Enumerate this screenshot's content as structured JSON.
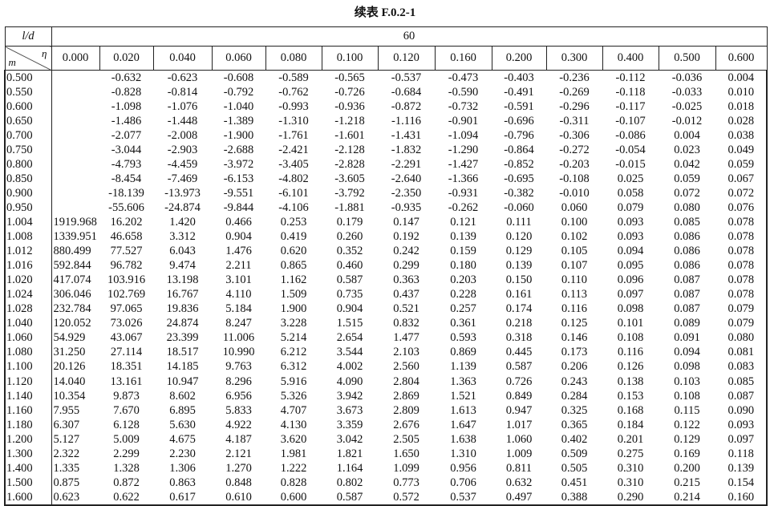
{
  "title": "续表 F.0.2-1",
  "header": {
    "ld_label": "l/d",
    "ld_value": "60",
    "eta_label": "η",
    "m_label": "m",
    "eta_values": [
      "0.000",
      "0.020",
      "0.040",
      "0.060",
      "0.080",
      "0.100",
      "0.120",
      "0.160",
      "0.200",
      "0.300",
      "0.400",
      "0.500",
      "0.600"
    ]
  },
  "rows": [
    {
      "m": "0.500",
      "v": [
        "",
        "-0.632",
        "-0.623",
        "-0.608",
        "-0.589",
        "-0.565",
        "-0.537",
        "-0.473",
        "-0.403",
        "-0.236",
        "-0.112",
        "-0.036",
        "0.004"
      ]
    },
    {
      "m": "0.550",
      "v": [
        "",
        "-0.828",
        "-0.814",
        "-0.792",
        "-0.762",
        "-0.726",
        "-0.684",
        "-0.590",
        "-0.491",
        "-0.269",
        "-0.118",
        "-0.033",
        "0.010"
      ]
    },
    {
      "m": "0.600",
      "v": [
        "",
        "-1.098",
        "-1.076",
        "-1.040",
        "-0.993",
        "-0.936",
        "-0.872",
        "-0.732",
        "-0.591",
        "-0.296",
        "-0.117",
        "-0.025",
        "0.018"
      ]
    },
    {
      "m": "0.650",
      "v": [
        "",
        "-1.486",
        "-1.448",
        "-1.389",
        "-1.310",
        "-1.218",
        "-1.116",
        "-0.901",
        "-0.696",
        "-0.311",
        "-0.107",
        "-0.012",
        "0.028"
      ]
    },
    {
      "m": "0.700",
      "v": [
        "",
        "-2.077",
        "-2.008",
        "-1.900",
        "-1.761",
        "-1.601",
        "-1.431",
        "-1.094",
        "-0.796",
        "-0.306",
        "-0.086",
        "0.004",
        "0.038"
      ]
    },
    {
      "m": "0.750",
      "v": [
        "",
        "-3.044",
        "-2.903",
        "-2.688",
        "-2.421",
        "-2.128",
        "-1.832",
        "-1.290",
        "-0.864",
        "-0.272",
        "-0.054",
        "0.023",
        "0.049"
      ]
    },
    {
      "m": "0.800",
      "v": [
        "",
        "-4.793",
        "-4.459",
        "-3.972",
        "-3.405",
        "-2.828",
        "-2.291",
        "-1.427",
        "-0.852",
        "-0.203",
        "-0.015",
        "0.042",
        "0.059"
      ]
    },
    {
      "m": "0.850",
      "v": [
        "",
        "-8.454",
        "-7.469",
        "-6.153",
        "-4.802",
        "-3.605",
        "-2.640",
        "-1.366",
        "-0.695",
        "-0.108",
        "0.025",
        "0.059",
        "0.067"
      ]
    },
    {
      "m": "0.900",
      "v": [
        "",
        "-18.139",
        "-13.973",
        "-9.551",
        "-6.101",
        "-3.792",
        "-2.350",
        "-0.931",
        "-0.382",
        "-0.010",
        "0.058",
        "0.072",
        "0.072"
      ]
    },
    {
      "m": "0.950",
      "v": [
        "",
        "-55.606",
        "-24.874",
        "-9.844",
        "-4.106",
        "-1.881",
        "-0.935",
        "-0.262",
        "-0.060",
        "0.060",
        "0.079",
        "0.080",
        "0.076"
      ]
    },
    {
      "m": "1.004",
      "v": [
        "1919.968",
        "16.202",
        "1.420",
        "0.466",
        "0.253",
        "0.179",
        "0.147",
        "0.121",
        "0.111",
        "0.100",
        "0.093",
        "0.085",
        "0.078"
      ]
    },
    {
      "m": "1.008",
      "v": [
        "1339.951",
        "46.658",
        "3.312",
        "0.904",
        "0.419",
        "0.260",
        "0.192",
        "0.139",
        "0.120",
        "0.102",
        "0.093",
        "0.086",
        "0.078"
      ]
    },
    {
      "m": "1.012",
      "v": [
        "880.499",
        "77.527",
        "6.043",
        "1.476",
        "0.620",
        "0.352",
        "0.242",
        "0.159",
        "0.129",
        "0.105",
        "0.094",
        "0.086",
        "0.078"
      ]
    },
    {
      "m": "1.016",
      "v": [
        "592.844",
        "96.782",
        "9.474",
        "2.211",
        "0.865",
        "0.460",
        "0.299",
        "0.180",
        "0.139",
        "0.107",
        "0.095",
        "0.086",
        "0.078"
      ]
    },
    {
      "m": "1.020",
      "v": [
        "417.074",
        "103.916",
        "13.198",
        "3.101",
        "1.162",
        "0.587",
        "0.363",
        "0.203",
        "0.150",
        "0.110",
        "0.096",
        "0.087",
        "0.078"
      ]
    },
    {
      "m": "1.024",
      "v": [
        "306.046",
        "102.769",
        "16.767",
        "4.110",
        "1.509",
        "0.735",
        "0.437",
        "0.228",
        "0.161",
        "0.113",
        "0.097",
        "0.087",
        "0.078"
      ]
    },
    {
      "m": "1.028",
      "v": [
        "232.784",
        "97.065",
        "19.836",
        "5.184",
        "1.900",
        "0.904",
        "0.521",
        "0.257",
        "0.174",
        "0.116",
        "0.098",
        "0.087",
        "0.079"
      ]
    },
    {
      "m": "1.040",
      "v": [
        "120.052",
        "73.026",
        "24.874",
        "8.247",
        "3.228",
        "1.515",
        "0.832",
        "0.361",
        "0.218",
        "0.125",
        "0.101",
        "0.089",
        "0.079"
      ]
    },
    {
      "m": "1.060",
      "v": [
        "54.929",
        "43.067",
        "23.399",
        "11.006",
        "5.214",
        "2.654",
        "1.477",
        "0.593",
        "0.318",
        "0.146",
        "0.108",
        "0.091",
        "0.080"
      ]
    },
    {
      "m": "1.080",
      "v": [
        "31.250",
        "27.114",
        "18.517",
        "10.990",
        "6.212",
        "3.544",
        "2.103",
        "0.869",
        "0.445",
        "0.173",
        "0.116",
        "0.094",
        "0.081"
      ]
    },
    {
      "m": "1.100",
      "v": [
        "20.126",
        "18.351",
        "14.185",
        "9.763",
        "6.312",
        "4.002",
        "2.560",
        "1.139",
        "0.587",
        "0.206",
        "0.126",
        "0.098",
        "0.083"
      ]
    },
    {
      "m": "1.120",
      "v": [
        "14.040",
        "13.161",
        "10.947",
        "8.296",
        "5.916",
        "4.090",
        "2.804",
        "1.363",
        "0.726",
        "0.243",
        "0.138",
        "0.103",
        "0.085"
      ]
    },
    {
      "m": "1.140",
      "v": [
        "10.354",
        "9.873",
        "8.602",
        "6.956",
        "5.326",
        "3.942",
        "2.869",
        "1.521",
        "0.849",
        "0.284",
        "0.153",
        "0.108",
        "0.087"
      ]
    },
    {
      "m": "1.160",
      "v": [
        "7.955",
        "7.670",
        "6.895",
        "5.833",
        "4.707",
        "3.673",
        "2.809",
        "1.613",
        "0.947",
        "0.325",
        "0.168",
        "0.115",
        "0.090"
      ]
    },
    {
      "m": "1.180",
      "v": [
        "6.307",
        "6.128",
        "5.630",
        "4.922",
        "4.130",
        "3.359",
        "2.676",
        "1.647",
        "1.017",
        "0.365",
        "0.184",
        "0.122",
        "0.093"
      ]
    },
    {
      "m": "1.200",
      "v": [
        "5.127",
        "5.009",
        "4.675",
        "4.187",
        "3.620",
        "3.042",
        "2.505",
        "1.638",
        "1.060",
        "0.402",
        "0.201",
        "0.129",
        "0.097"
      ]
    },
    {
      "m": "1.300",
      "v": [
        "2.322",
        "2.299",
        "2.230",
        "2.121",
        "1.981",
        "1.821",
        "1.650",
        "1.310",
        "1.009",
        "0.509",
        "0.275",
        "0.169",
        "0.118"
      ]
    },
    {
      "m": "1.400",
      "v": [
        "1.335",
        "1.328",
        "1.306",
        "1.270",
        "1.222",
        "1.164",
        "1.099",
        "0.956",
        "0.811",
        "0.505",
        "0.310",
        "0.200",
        "0.139"
      ]
    },
    {
      "m": "1.500",
      "v": [
        "0.875",
        "0.872",
        "0.863",
        "0.848",
        "0.828",
        "0.802",
        "0.773",
        "0.706",
        "0.632",
        "0.451",
        "0.310",
        "0.215",
        "0.154"
      ]
    },
    {
      "m": "1.600",
      "v": [
        "0.623",
        "0.622",
        "0.617",
        "0.610",
        "0.600",
        "0.587",
        "0.572",
        "0.537",
        "0.497",
        "0.388",
        "0.290",
        "0.214",
        "0.160"
      ]
    }
  ]
}
